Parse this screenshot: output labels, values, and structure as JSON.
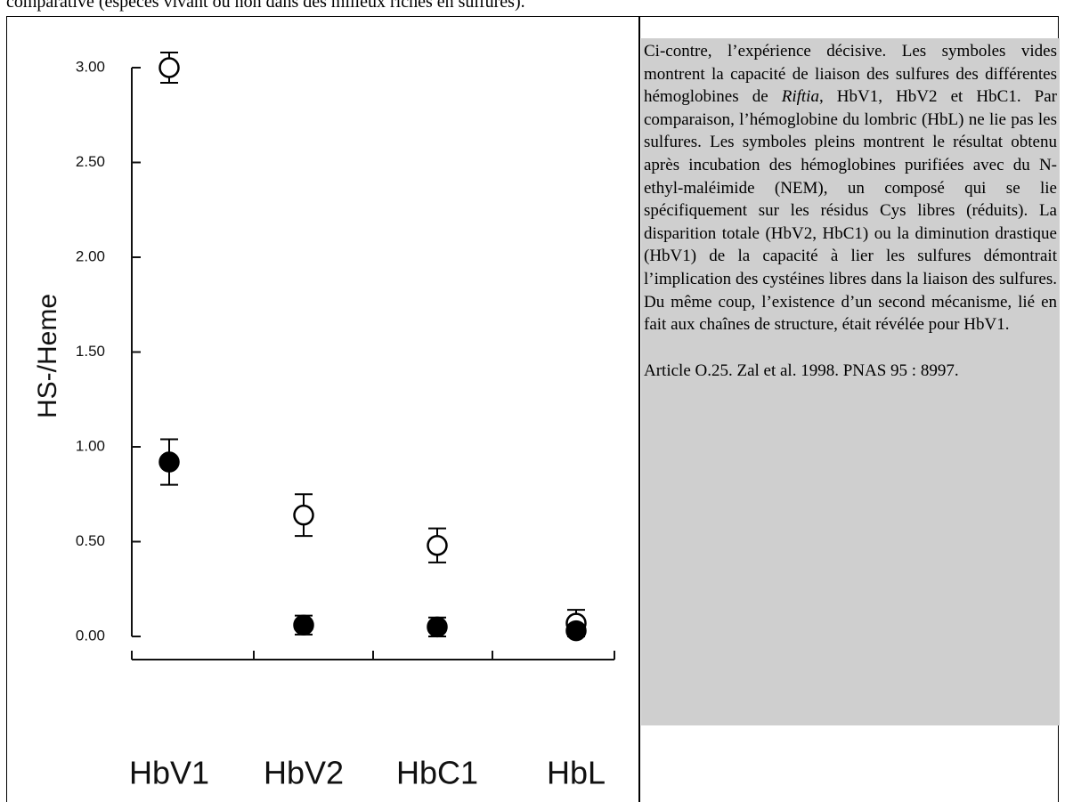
{
  "top_line": "comparative (espèces vivant ou non dans des milieux riches en sulfures).",
  "chart_data": {
    "type": "scatter",
    "ylabel": "HS-/Heme",
    "categories": [
      "HbV1",
      "HbV2",
      "HbC1",
      "HbL"
    ],
    "series": [
      {
        "marker": "open",
        "color": "#000000",
        "values": [
          3.0,
          0.64,
          0.48,
          0.07
        ],
        "errors": [
          0.08,
          0.11,
          0.09,
          0.07
        ]
      },
      {
        "marker": "filled",
        "color": "#000000",
        "values": [
          0.92,
          0.06,
          0.05,
          0.03
        ],
        "errors": [
          0.12,
          0.05,
          0.05,
          0
        ]
      }
    ],
    "ylim": [
      -0.12,
      3.1
    ],
    "yticks": [
      {
        "value": 0,
        "label": "0.00"
      },
      {
        "value": 0.5,
        "label": "0.50"
      },
      {
        "value": 1,
        "label": "1.00"
      },
      {
        "value": 1.5,
        "label": "1.50"
      },
      {
        "value": 2,
        "label": "2.00"
      },
      {
        "value": 2.5,
        "label": "2.50"
      },
      {
        "value": 3,
        "label": "3.00"
      }
    ]
  },
  "caption": {
    "paragraph_parts": [
      "Ci-contre, l’expérience décisive. Les symboles vides montrent la capacité de liaison des sulfures des différentes hémoglobines de ",
      "Riftia",
      ", HbV1, HbV2 et HbC1. Par comparaison, l’hémoglobine du lombric (HbL) ne lie pas les sulfures. Les symboles pleins montrent le résultat obtenu après incubation des hémoglobines purifiées avec du N-ethyl-maléimide (NEM), un composé qui se lie spécifiquement sur les résidus Cys libres (réduits). La disparition totale (HbV2, HbC1) ou la diminution drastique (HbV1) de la capacité à lier les sulfures démontrait l’implication des cystéines libres dans la liaison des sulfures. Du même coup, l’existence d’un second mécanisme, lié en fait aux chaînes de structure, était révélée pour HbV1."
    ],
    "reference": "Article O.25. Zal et al. 1998. PNAS 95 : 8997."
  }
}
